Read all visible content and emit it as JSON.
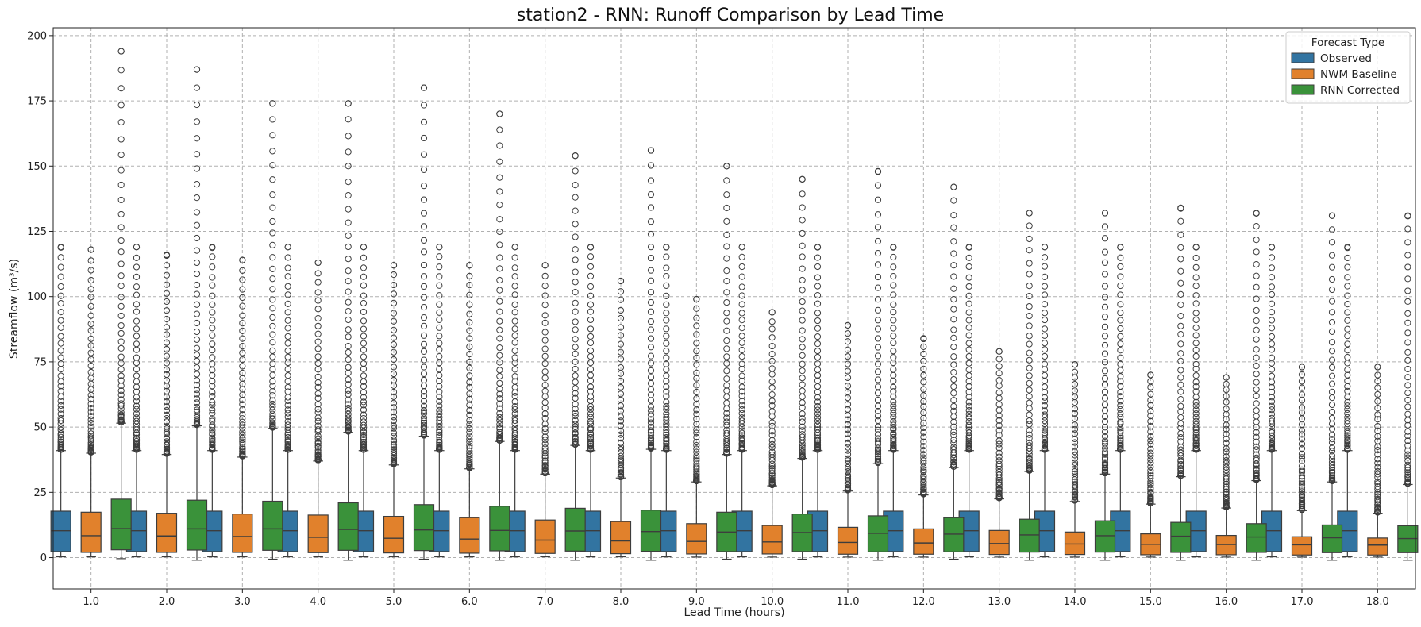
{
  "chart_data": {
    "type": "boxplot",
    "title": "station2 - RNN: Runoff Comparison by Lead Time",
    "xlabel": "Lead Time (hours)",
    "ylabel": "Streamflow (m³/s)",
    "ylim": [
      -12,
      203
    ],
    "yticks": [
      0,
      25,
      50,
      75,
      100,
      125,
      150,
      175,
      200
    ],
    "grid": true,
    "legend": {
      "title": "Forecast Type",
      "position": "top-right"
    },
    "categories": [
      "1.0",
      "2.0",
      "3.0",
      "4.0",
      "5.0",
      "6.0",
      "7.0",
      "8.0",
      "9.0",
      "10.0",
      "11.0",
      "12.0",
      "13.0",
      "14.0",
      "15.0",
      "16.0",
      "17.0",
      "18.0"
    ],
    "series": [
      {
        "name": "Observed",
        "color": "#3274a1",
        "q1": [
          2.3,
          2.3,
          2.3,
          2.3,
          2.3,
          2.3,
          2.3,
          2.3,
          2.3,
          2.3,
          2.3,
          2.3,
          2.3,
          2.3,
          2.3,
          2.3,
          2.3,
          2.3
        ],
        "median": [
          10.3,
          10.3,
          10.3,
          10.3,
          10.3,
          10.3,
          10.3,
          10.3,
          10.3,
          10.3,
          10.3,
          10.3,
          10.3,
          10.3,
          10.3,
          10.3,
          10.3,
          10.3
        ],
        "q3": [
          17.8,
          17.8,
          17.8,
          17.8,
          17.8,
          17.8,
          17.8,
          17.8,
          17.8,
          17.8,
          17.8,
          17.8,
          17.8,
          17.8,
          17.8,
          17.8,
          17.8,
          17.8
        ],
        "whisker_low": [
          0.3,
          0.3,
          0.3,
          0.3,
          0.3,
          0.3,
          0.3,
          0.3,
          0.3,
          0.3,
          0.3,
          0.3,
          0.3,
          0.3,
          0.3,
          0.3,
          0.3,
          0.3
        ],
        "whisker_high": [
          41,
          41,
          41,
          41,
          41,
          41,
          41,
          41,
          41,
          41,
          41,
          41,
          41,
          41,
          41,
          41,
          41,
          41
        ],
        "flier_max": [
          119,
          119,
          119,
          119,
          119,
          119,
          119,
          119,
          119,
          119,
          119,
          119,
          119,
          119,
          119,
          119,
          119,
          119
        ]
      },
      {
        "name": "NWM Baseline",
        "color": "#e1812c",
        "q1": [
          2.0,
          2.0,
          2.0,
          1.9,
          1.8,
          1.7,
          1.6,
          1.5,
          1.4,
          1.4,
          1.3,
          1.3,
          1.2,
          1.2,
          1.1,
          1.1,
          1.0,
          1.0
        ],
        "median": [
          8.4,
          8.3,
          8.1,
          7.8,
          7.4,
          7.1,
          6.7,
          6.4,
          6.2,
          6.0,
          5.8,
          5.6,
          5.4,
          5.2,
          5.1,
          5.0,
          4.9,
          4.8
        ],
        "q3": [
          17.4,
          17.0,
          16.7,
          16.3,
          15.8,
          15.3,
          14.4,
          13.8,
          13.0,
          12.3,
          11.6,
          11.0,
          10.4,
          9.8,
          9.1,
          8.5,
          8.0,
          7.5
        ],
        "whisker_low": [
          0.3,
          0.3,
          0.3,
          0.3,
          0.3,
          0.3,
          0.3,
          0.3,
          0.2,
          0.2,
          0.2,
          0.2,
          0.2,
          0.2,
          0.2,
          0.2,
          0.2,
          0.2
        ],
        "whisker_high": [
          40,
          39.5,
          38.5,
          37,
          35.5,
          34,
          32,
          30.5,
          29,
          27.5,
          25.5,
          24,
          22.5,
          21.5,
          20.5,
          19,
          18,
          17
        ],
        "flier_max": [
          118,
          116,
          114,
          113,
          112,
          112,
          112,
          106,
          99,
          94,
          89,
          84,
          79,
          74,
          70,
          69,
          73,
          73
        ]
      },
      {
        "name": "RNN Corrected",
        "color": "#3a923a",
        "q1": [
          3.0,
          2.9,
          2.8,
          2.8,
          2.7,
          2.6,
          2.5,
          2.4,
          2.3,
          2.3,
          2.2,
          2.2,
          2.1,
          2.1,
          2.0,
          2.0,
          1.9,
          1.9
        ],
        "median": [
          11.1,
          11.0,
          11.0,
          10.8,
          10.6,
          10.4,
          10.2,
          10.0,
          9.8,
          9.6,
          9.3,
          9.0,
          8.7,
          8.4,
          8.2,
          7.9,
          7.6,
          7.3
        ],
        "q3": [
          22.4,
          22.0,
          21.6,
          21.0,
          20.3,
          19.7,
          18.9,
          18.2,
          17.4,
          16.7,
          16.0,
          15.3,
          14.7,
          14.1,
          13.5,
          13.0,
          12.5,
          12.2
        ],
        "whisker_low": [
          -0.4,
          -1.0,
          -0.6,
          -1.0,
          -0.6,
          -1.0,
          -1.0,
          -1.0,
          -0.6,
          -0.6,
          -1.0,
          -0.6,
          -1.0,
          -1.0,
          -1.0,
          -1.0,
          -1.0,
          -1.0
        ],
        "whisker_high": [
          51.5,
          50.5,
          49.5,
          48,
          46.5,
          44.5,
          43,
          41.5,
          39.5,
          38,
          36,
          34.5,
          33,
          32,
          31,
          29.5,
          29,
          28
        ],
        "flier_max": [
          194,
          187,
          174,
          174,
          180,
          170,
          154,
          156,
          150,
          145,
          148,
          142,
          132,
          132,
          134,
          132,
          131,
          131
        ]
      }
    ]
  }
}
